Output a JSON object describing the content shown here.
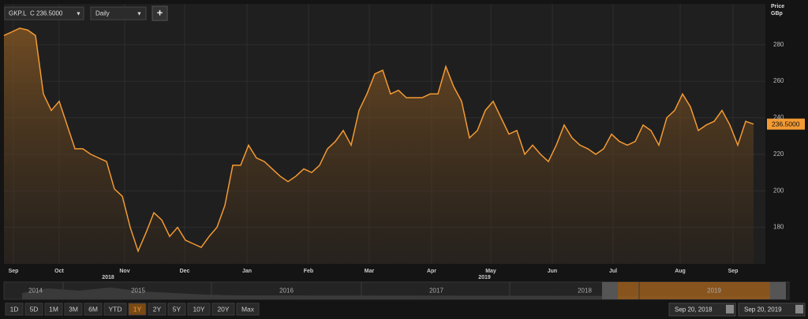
{
  "toolbar": {
    "symbol": "GKP.L",
    "last": "C 236.5000",
    "interval": "Daily",
    "add": "+"
  },
  "chart_data": {
    "type": "line",
    "y_axis_label": "Price",
    "y_axis_unit": "GBp",
    "color": "#f39a33",
    "values": [
      285,
      287,
      289,
      288,
      285,
      253,
      244,
      249,
      236,
      223,
      223,
      220,
      218,
      216,
      201,
      197,
      180,
      167,
      177,
      188,
      184,
      175,
      180,
      173,
      171,
      169,
      175,
      180,
      192,
      214,
      214,
      225,
      218,
      216,
      212,
      208,
      205,
      208,
      212,
      210,
      214,
      223,
      227,
      233,
      225,
      244,
      253,
      264,
      266,
      253,
      255,
      251,
      251,
      251,
      253,
      253,
      268,
      257,
      249,
      229,
      233,
      244,
      249,
      240,
      231,
      233,
      220,
      225,
      220,
      216,
      225,
      236,
      229,
      225,
      223,
      220,
      223,
      231,
      227,
      225,
      227,
      236,
      233,
      225,
      240,
      244,
      253,
      246,
      233,
      236,
      238,
      244,
      236,
      225,
      238,
      236.5
    ],
    "last_label": "236.5000",
    "ylim": [
      160,
      301
    ],
    "yticks": [
      180,
      200,
      220,
      240,
      260,
      280
    ],
    "xlim": [
      0,
      96.5
    ],
    "xticks": [
      {
        "value": 1.2,
        "label": "Sep"
      },
      {
        "value": 7,
        "label": "Oct"
      },
      {
        "value": 15.3,
        "label": "Nov"
      },
      {
        "value": 22.9,
        "label": "Dec"
      },
      {
        "value": 30.8,
        "label": "Jan"
      },
      {
        "value": 38.6,
        "label": "Feb"
      },
      {
        "value": 46.3,
        "label": "Mar"
      },
      {
        "value": 54.2,
        "label": "Apr"
      },
      {
        "value": 61.7,
        "label": "May"
      },
      {
        "value": 69.5,
        "label": "Jun"
      },
      {
        "value": 77.2,
        "label": "Jul"
      },
      {
        "value": 85.7,
        "label": "Aug"
      },
      {
        "value": 92.4,
        "label": "Sep"
      }
    ],
    "year_labels": [
      {
        "value": 13.2,
        "label": "2018"
      },
      {
        "value": 60.9,
        "label": "2019"
      }
    ],
    "grid": true
  },
  "navigator": {
    "years": [
      "2014",
      "2015",
      "2016",
      "2017",
      "2018",
      "2019"
    ]
  },
  "ranges": [
    "1D",
    "5D",
    "1M",
    "3M",
    "6M",
    "YTD",
    "1Y",
    "2Y",
    "5Y",
    "10Y",
    "20Y",
    "Max"
  ],
  "active_range": "1Y",
  "date_range": {
    "from": "Sep 20, 2018",
    "to": "Sep 20, 2019"
  }
}
